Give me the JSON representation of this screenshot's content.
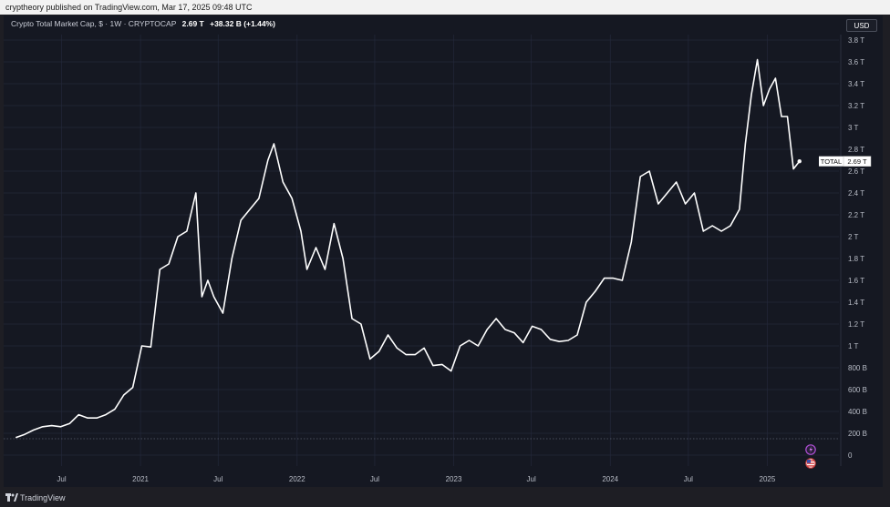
{
  "header": {
    "published": "cryptheory published on TradingView.com, Mar 17, 2025 09:48 UTC"
  },
  "legend": {
    "title": "Crypto Total Market Cap, $ · 1W · CRYPTOCAP",
    "value": "2.69 T",
    "change": "+38.32 B (+1.44%)"
  },
  "currency_button": "USD",
  "footer": {
    "brand": "TradingView"
  },
  "colors": {
    "background": "#151822",
    "line": "#ffffff",
    "grid": "#23283a",
    "axis_text": "#b8bcc6"
  },
  "chart_data": {
    "type": "line",
    "title": "Crypto Total Market Cap, $ · 1W · CRYPTOCAP",
    "xlabel": "",
    "ylabel": "",
    "grid": true,
    "legend": "top-left",
    "ylim": [
      -0.1,
      3.85
    ],
    "y_ticks": [
      0,
      0.2,
      0.4,
      0.6,
      0.8,
      1.0,
      1.2,
      1.4,
      1.6,
      1.8,
      2.0,
      2.2,
      2.4,
      2.6,
      2.8,
      3.0,
      3.2,
      3.4,
      3.6,
      3.8
    ],
    "y_tick_labels": [
      "0",
      "200 B",
      "400 B",
      "600 B",
      "800 B",
      "1 T",
      "1.2 T",
      "1.4 T",
      "1.6 T",
      "1.8 T",
      "2 T",
      "2.2 T",
      "2.4 T",
      "2.6 T",
      "2.8 T",
      "3 T",
      "3.2 T",
      "3.4 T",
      "3.6 T",
      "3.8 T"
    ],
    "x_ticks": [
      {
        "label": "Jul",
        "date": "2020-07-01"
      },
      {
        "label": "2021",
        "date": "2021-01-01"
      },
      {
        "label": "Jul",
        "date": "2021-07-01"
      },
      {
        "label": "2022",
        "date": "2022-01-01"
      },
      {
        "label": "Jul",
        "date": "2022-07-01"
      },
      {
        "label": "2023",
        "date": "2023-01-01"
      },
      {
        "label": "Jul",
        "date": "2023-07-01"
      },
      {
        "label": "2024",
        "date": "2024-01-01"
      },
      {
        "label": "Jul",
        "date": "2024-07-01"
      },
      {
        "label": "2025",
        "date": "2025-01-01"
      }
    ],
    "xlim": [
      "2020-02-17",
      "2025-06-17"
    ],
    "last_label": {
      "name": "TOTAL",
      "value": "2.69 T",
      "y": 2.69
    },
    "series": [
      {
        "name": "TOTAL",
        "points": [
          [
            "2020-03-16",
            0.16
          ],
          [
            "2020-04-06",
            0.19
          ],
          [
            "2020-04-27",
            0.23
          ],
          [
            "2020-05-18",
            0.26
          ],
          [
            "2020-06-08",
            0.27
          ],
          [
            "2020-06-29",
            0.26
          ],
          [
            "2020-07-20",
            0.29
          ],
          [
            "2020-08-10",
            0.37
          ],
          [
            "2020-08-31",
            0.34
          ],
          [
            "2020-09-21",
            0.34
          ],
          [
            "2020-10-12",
            0.37
          ],
          [
            "2020-11-02",
            0.42
          ],
          [
            "2020-11-23",
            0.55
          ],
          [
            "2020-12-14",
            0.62
          ],
          [
            "2021-01-04",
            1.0
          ],
          [
            "2021-01-25",
            0.99
          ],
          [
            "2021-02-15",
            1.7
          ],
          [
            "2021-03-08",
            1.75
          ],
          [
            "2021-03-29",
            2.0
          ],
          [
            "2021-04-19",
            2.05
          ],
          [
            "2021-05-10",
            2.4
          ],
          [
            "2021-05-24",
            1.45
          ],
          [
            "2021-06-07",
            1.6
          ],
          [
            "2021-06-21",
            1.45
          ],
          [
            "2021-07-12",
            1.3
          ],
          [
            "2021-08-02",
            1.8
          ],
          [
            "2021-08-23",
            2.15
          ],
          [
            "2021-09-13",
            2.25
          ],
          [
            "2021-10-04",
            2.35
          ],
          [
            "2021-10-25",
            2.7
          ],
          [
            "2021-11-08",
            2.85
          ],
          [
            "2021-11-29",
            2.5
          ],
          [
            "2021-12-20",
            2.35
          ],
          [
            "2022-01-10",
            2.05
          ],
          [
            "2022-01-24",
            1.7
          ],
          [
            "2022-02-14",
            1.9
          ],
          [
            "2022-03-07",
            1.7
          ],
          [
            "2022-03-28",
            2.12
          ],
          [
            "2022-04-18",
            1.8
          ],
          [
            "2022-05-09",
            1.25
          ],
          [
            "2022-05-30",
            1.2
          ],
          [
            "2022-06-20",
            0.88
          ],
          [
            "2022-07-11",
            0.95
          ],
          [
            "2022-08-01",
            1.1
          ],
          [
            "2022-08-22",
            0.98
          ],
          [
            "2022-09-12",
            0.92
          ],
          [
            "2022-10-03",
            0.92
          ],
          [
            "2022-10-24",
            0.98
          ],
          [
            "2022-11-14",
            0.82
          ],
          [
            "2022-12-05",
            0.83
          ],
          [
            "2022-12-26",
            0.77
          ],
          [
            "2023-01-16",
            1.0
          ],
          [
            "2023-02-06",
            1.05
          ],
          [
            "2023-02-27",
            1.0
          ],
          [
            "2023-03-20",
            1.15
          ],
          [
            "2023-04-10",
            1.25
          ],
          [
            "2023-05-01",
            1.15
          ],
          [
            "2023-05-22",
            1.12
          ],
          [
            "2023-06-12",
            1.03
          ],
          [
            "2023-07-03",
            1.18
          ],
          [
            "2023-07-24",
            1.15
          ],
          [
            "2023-08-14",
            1.06
          ],
          [
            "2023-09-04",
            1.04
          ],
          [
            "2023-09-25",
            1.05
          ],
          [
            "2023-10-16",
            1.1
          ],
          [
            "2023-11-06",
            1.4
          ],
          [
            "2023-11-27",
            1.5
          ],
          [
            "2023-12-18",
            1.62
          ],
          [
            "2024-01-08",
            1.62
          ],
          [
            "2024-01-29",
            1.6
          ],
          [
            "2024-02-19",
            1.95
          ],
          [
            "2024-03-11",
            2.55
          ],
          [
            "2024-04-01",
            2.6
          ],
          [
            "2024-04-22",
            2.3
          ],
          [
            "2024-05-13",
            2.4
          ],
          [
            "2024-06-03",
            2.5
          ],
          [
            "2024-06-24",
            2.3
          ],
          [
            "2024-07-15",
            2.4
          ],
          [
            "2024-08-05",
            2.05
          ],
          [
            "2024-08-26",
            2.1
          ],
          [
            "2024-09-16",
            2.05
          ],
          [
            "2024-10-07",
            2.1
          ],
          [
            "2024-10-28",
            2.25
          ],
          [
            "2024-11-11",
            2.85
          ],
          [
            "2024-11-25",
            3.3
          ],
          [
            "2024-12-09",
            3.62
          ],
          [
            "2024-12-23",
            3.2
          ],
          [
            "2025-01-06",
            3.35
          ],
          [
            "2025-01-20",
            3.45
          ],
          [
            "2025-02-03",
            3.1
          ],
          [
            "2025-02-17",
            3.1
          ],
          [
            "2025-03-03",
            2.62
          ],
          [
            "2025-03-17",
            2.69
          ]
        ]
      }
    ]
  }
}
